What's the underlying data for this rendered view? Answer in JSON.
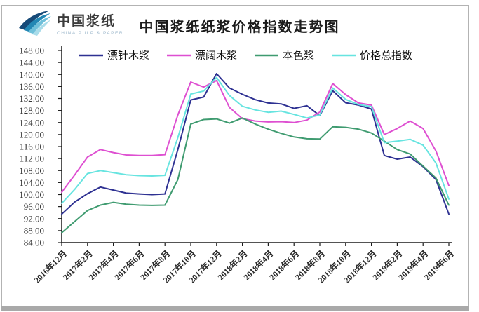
{
  "header": {
    "logo_text": "中国浆纸",
    "logo_subtext": "CHINA PULP & PAPER",
    "title": "中国浆纸纸浆价格指数走势图"
  },
  "chart_data": {
    "type": "line",
    "title": "中国浆纸纸浆价格指数走势图",
    "grid": false,
    "legend_position": "top",
    "ylim": [
      84,
      148
    ],
    "y_tick_step": 4,
    "y_tick_labels": [
      "148.00",
      "144.00",
      "140.00",
      "136.00",
      "132.00",
      "128.00",
      "124.00",
      "120.00",
      "116.00",
      "112.00",
      "108.00",
      "104.00",
      "100.00",
      "96.00",
      "92.00",
      "88.00",
      "84.00"
    ],
    "x_tick_labels": [
      "2016年12月",
      "2017年2月",
      "2017年4月",
      "2017年6月",
      "2017年8月",
      "2017年10月",
      "2017年12月",
      "2018年2月",
      "2018年4月",
      "2018年6月",
      "2018年8月",
      "2018年10月",
      "2018年12月",
      "2019年2月",
      "2019年4月",
      "2019年6月"
    ],
    "x": [
      "2016年12月",
      "2017年1月",
      "2017年2月",
      "2017年3月",
      "2017年4月",
      "2017年5月",
      "2017年6月",
      "2017年7月",
      "2017年8月",
      "2017年9月",
      "2017年10月",
      "2017年11月",
      "2017年12月",
      "2018年1月",
      "2018年2月",
      "2018年3月",
      "2018年4月",
      "2018年5月",
      "2018年6月",
      "2018年7月",
      "2018年8月",
      "2018年9月",
      "2018年10月",
      "2018年11月",
      "2018年12月",
      "2019年1月",
      "2019年2月",
      "2019年3月",
      "2019年4月",
      "2019年5月",
      "2019年6月"
    ],
    "series": [
      {
        "name": "漂针木浆",
        "color": "#2e3192",
        "values": [
          93.5,
          97.5,
          100.3,
          102.5,
          101.5,
          100.5,
          100.2,
          100.0,
          100.2,
          115.0,
          131.5,
          132.5,
          140.3,
          135.5,
          133.4,
          131.6,
          130.5,
          130.2,
          128.7,
          129.6,
          126.3,
          134.6,
          130.6,
          129.8,
          128.5,
          113.0,
          111.8,
          112.5,
          109.3,
          105.0,
          93.5
        ]
      },
      {
        "name": "漂阔木浆",
        "color": "#de4fd1",
        "values": [
          100.8,
          106.5,
          112.5,
          115.0,
          114.0,
          113.2,
          113.0,
          113.0,
          113.3,
          126.5,
          137.5,
          135.8,
          138.0,
          129.0,
          125.3,
          124.5,
          124.2,
          124.3,
          124.0,
          124.8,
          127.5,
          137.0,
          133.3,
          130.5,
          129.8,
          120.0,
          122.0,
          124.5,
          122.0,
          114.5,
          103.0
        ]
      },
      {
        "name": "本色浆",
        "color": "#3f9b70",
        "values": [
          87.3,
          91.0,
          94.7,
          96.5,
          97.4,
          96.8,
          96.5,
          96.4,
          96.5,
          105.0,
          123.5,
          125.0,
          125.2,
          123.8,
          125.5,
          123.5,
          121.8,
          120.4,
          119.2,
          118.6,
          118.5,
          122.6,
          122.4,
          121.8,
          120.5,
          117.8,
          115.0,
          113.5,
          109.5,
          105.5,
          96.5
        ]
      },
      {
        "name": "价格总指数",
        "color": "#67e4e0",
        "values": [
          97.1,
          101.7,
          107.0,
          108.0,
          107.3,
          106.6,
          106.3,
          106.2,
          106.4,
          119.0,
          133.5,
          134.5,
          139.0,
          133.0,
          129.4,
          128.2,
          127.4,
          127.8,
          126.7,
          125.5,
          126.5,
          135.5,
          131.7,
          130.0,
          129.3,
          117.3,
          117.8,
          118.4,
          116.5,
          110.5,
          98.5
        ]
      }
    ]
  }
}
